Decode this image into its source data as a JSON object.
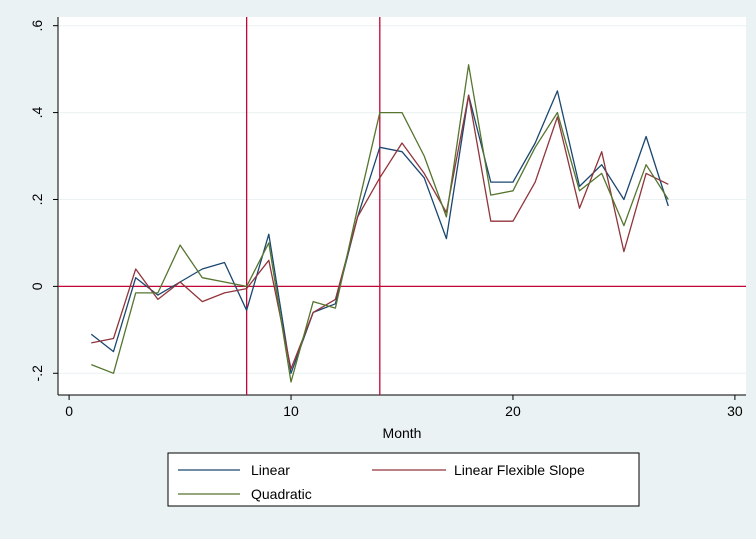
{
  "chart_data": {
    "type": "line",
    "title": "",
    "xlabel": "Month",
    "ylabel": "",
    "xlim": [
      -0.5,
      30.5
    ],
    "ylim": [
      -0.25,
      0.62
    ],
    "xticks": [
      0,
      10,
      20,
      30
    ],
    "xtick_labels": [
      "0",
      "10",
      "20",
      "30"
    ],
    "yticks": [
      -0.2,
      0,
      0.2,
      0.4,
      0.6
    ],
    "ytick_labels": [
      "-.2",
      "0",
      ".2",
      ".4",
      ".6"
    ],
    "grid": "horizontal",
    "legend_position": "bottom",
    "reference_lines": {
      "vertical": [
        8,
        14
      ],
      "horizontal": [
        0
      ]
    },
    "x": [
      1,
      2,
      3,
      4,
      5,
      6,
      7,
      8,
      9,
      10,
      11,
      12,
      13,
      14,
      15,
      16,
      17,
      18,
      19,
      20,
      21,
      22,
      23,
      24,
      25,
      26,
      27
    ],
    "series": [
      {
        "name": "Linear",
        "color": "#1a476f",
        "values": [
          -0.11,
          -0.15,
          0.02,
          -0.02,
          0.01,
          0.04,
          0.055,
          -0.055,
          0.12,
          -0.2,
          -0.06,
          -0.04,
          0.16,
          0.32,
          0.31,
          0.25,
          0.11,
          0.44,
          0.24,
          0.24,
          0.33,
          0.45,
          0.23,
          0.28,
          0.2,
          0.345,
          0.185
        ]
      },
      {
        "name": "Linear Flexible Slope",
        "color": "#90353b",
        "values": [
          -0.13,
          -0.12,
          0.04,
          -0.03,
          0.01,
          -0.035,
          -0.015,
          -0.005,
          0.06,
          -0.19,
          -0.06,
          -0.03,
          0.16,
          0.25,
          0.33,
          0.26,
          0.17,
          0.44,
          0.15,
          0.15,
          0.24,
          0.39,
          0.18,
          0.31,
          0.08,
          0.26,
          0.235
        ]
      },
      {
        "name": "Quadratic",
        "color": "#55752f",
        "values": [
          -0.18,
          -0.2,
          -0.015,
          -0.015,
          0.095,
          0.02,
          0.01,
          0.0,
          0.1,
          -0.22,
          -0.035,
          -0.05,
          0.18,
          0.4,
          0.4,
          0.3,
          0.16,
          0.51,
          0.21,
          0.22,
          0.32,
          0.4,
          0.22,
          0.26,
          0.14,
          0.28,
          0.2
        ]
      }
    ]
  }
}
